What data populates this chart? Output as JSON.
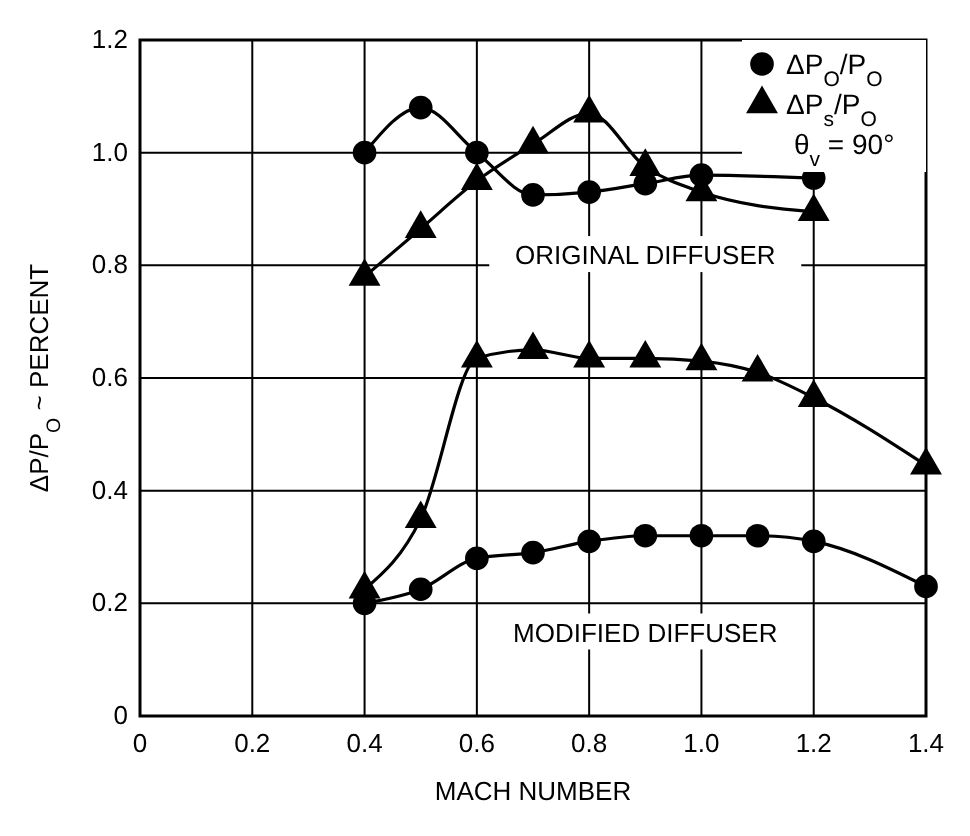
{
  "chart_data": {
    "type": "line",
    "xlabel": "MACH NUMBER",
    "ylabel": "ΔP/P$_{O}$ ~ PERCENT",
    "xlim": [
      0,
      1.4
    ],
    "xticks": [
      0,
      0.2,
      0.4,
      0.6,
      0.8,
      {
        "value": 1,
        "label": "1.0"
      },
      1.2,
      1.4
    ],
    "ylim": [
      0,
      1.2
    ],
    "yticks": [
      0,
      0.2,
      0.4,
      0.6,
      0.8,
      {
        "value": 1,
        "label": "1.0"
      },
      1.2
    ],
    "grid": true,
    "legend": "top right",
    "line_style": "solid",
    "series": [
      {
        "name": "ΔP$_{O}$/P$_{O}$",
        "color": "#000000",
        "marker": "circle",
        "x": [
          0.4,
          0.5,
          0.6,
          0.7,
          0.8,
          0.9,
          1.0,
          1.2
        ],
        "values": [
          1.0,
          1.08,
          1.0,
          0.925,
          0.93,
          0.945,
          0.96,
          0.955
        ]
      },
      {
        "name": "ΔP$_{s}$/P$_{O}$",
        "color": "#000000",
        "marker": "triangle",
        "x": [
          0.4,
          0.5,
          0.6,
          0.7,
          0.8,
          0.9,
          1.0,
          1.2
        ],
        "values": [
          0.78,
          0.865,
          0.95,
          1.015,
          1.07,
          0.975,
          0.93,
          0.895
        ]
      },
      {
        "color": "#000000",
        "marker": "triangle",
        "x": [
          0.4,
          0.5,
          0.6,
          0.7,
          0.8,
          0.9,
          1.0,
          1.1,
          1.2,
          1.4
        ],
        "values": [
          0.225,
          0.35,
          0.635,
          0.65,
          0.635,
          0.635,
          0.63,
          0.61,
          0.565,
          0.445
        ]
      },
      {
        "color": "#000000",
        "marker": "circle",
        "x": [
          0.4,
          0.5,
          0.6,
          0.7,
          0.8,
          0.9,
          1.0,
          1.1,
          1.2,
          1.4
        ],
        "values": [
          0.2,
          0.225,
          0.28,
          0.29,
          0.31,
          0.32,
          0.32,
          0.32,
          0.31,
          0.23
        ]
      }
    ],
    "annotations": [
      "θ$_{v}$ = 90°",
      "ORIGINAL DIFFUSER",
      "MODIFIED DIFFUSER"
    ]
  }
}
